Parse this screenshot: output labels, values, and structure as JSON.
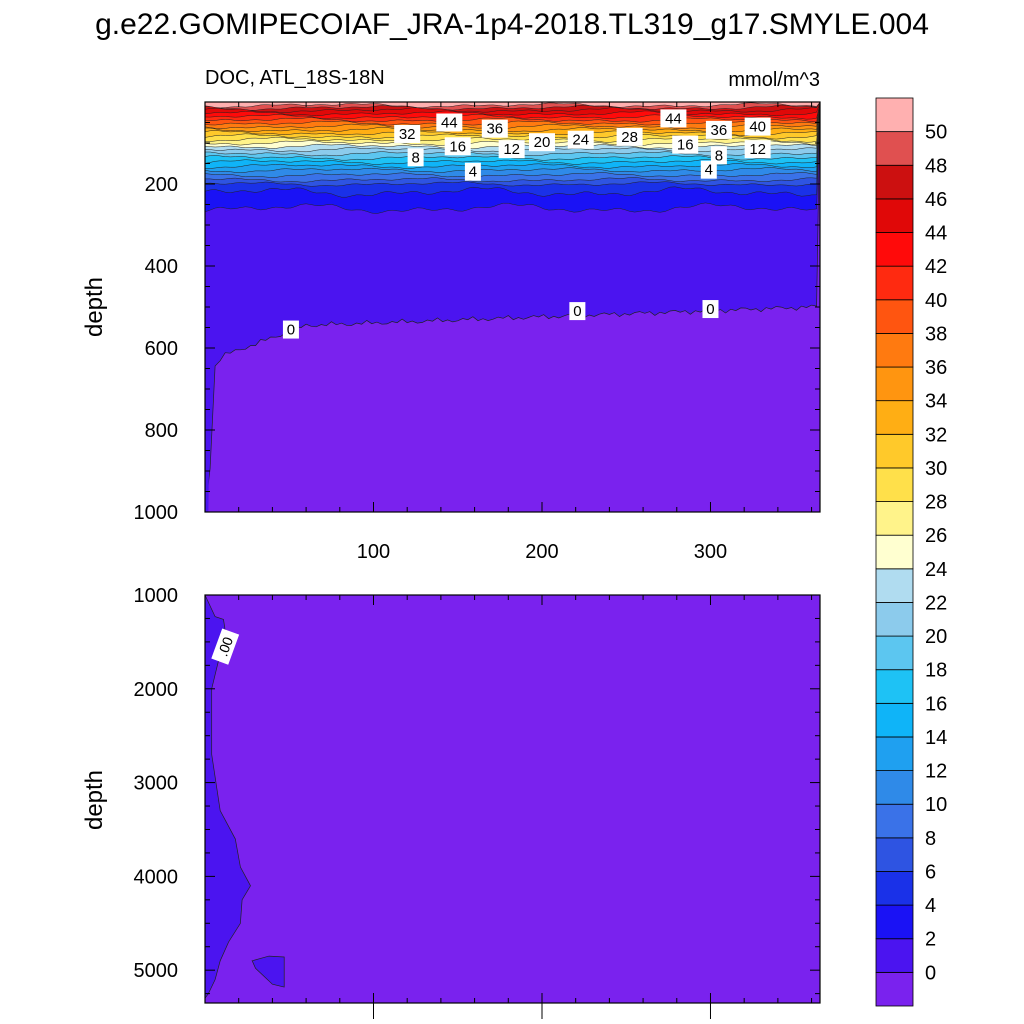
{
  "title": "g.e22.GOMIPECOIAF_JRA-1p4-2018.TL319_g17.SMYLE.004",
  "subtitle_left": "DOC, ATL_18S-18N",
  "subtitle_right": "mmol/m^3",
  "colorbar": {
    "colors": [
      "#7a22ee",
      "#4b14f0",
      "#1a12f5",
      "#1a31e8",
      "#2e54e2",
      "#3a72e8",
      "#2f8ae8",
      "#1fa0f0",
      "#0fb4f8",
      "#1ec2f5",
      "#5cc6f0",
      "#8ccbec",
      "#b0dcf0",
      "#ffffd0",
      "#fff38a",
      "#ffe04a",
      "#ffc92a",
      "#ffae14",
      "#ff9510",
      "#ff7a10",
      "#ff5510",
      "#ff2a10",
      "#ff0a0a",
      "#e00808",
      "#cc1010",
      "#e05050",
      "#ffb0b0"
    ],
    "labels": [
      "0",
      "2",
      "4",
      "6",
      "8",
      "10",
      "12",
      "14",
      "16",
      "18",
      "20",
      "22",
      "24",
      "26",
      "28",
      "30",
      "32",
      "34",
      "36",
      "38",
      "40",
      "42",
      "44",
      "46",
      "48",
      "50"
    ]
  },
  "chart_data": [
    {
      "type": "contour",
      "panel": "upper",
      "title": "DOC, ATL_18S-18N",
      "units": "mmol/m^3",
      "xlabel": "",
      "ylabel": "depth",
      "xlim": [
        0,
        365
      ],
      "ylim": [
        1000,
        0
      ],
      "xticks": [
        "100",
        "200",
        "300"
      ],
      "yticks": [
        "200",
        "400",
        "600",
        "800",
        "1000"
      ],
      "contour_levels": [
        0,
        2,
        4,
        6,
        8,
        10,
        12,
        14,
        16,
        18,
        20,
        22,
        24,
        26,
        28,
        30,
        32,
        34,
        36,
        38,
        40,
        42,
        44,
        46,
        48,
        50
      ],
      "contour_labels": [
        {
          "text": "44",
          "x": 145,
          "y": 50
        },
        {
          "text": "36",
          "x": 172,
          "y": 65
        },
        {
          "text": "32",
          "x": 120,
          "y": 78
        },
        {
          "text": "16",
          "x": 150,
          "y": 108
        },
        {
          "text": "12",
          "x": 182,
          "y": 115
        },
        {
          "text": "20",
          "x": 200,
          "y": 98
        },
        {
          "text": "24",
          "x": 223,
          "y": 92
        },
        {
          "text": "28",
          "x": 252,
          "y": 85
        },
        {
          "text": "44",
          "x": 278,
          "y": 40
        },
        {
          "text": "36",
          "x": 305,
          "y": 68
        },
        {
          "text": "40",
          "x": 328,
          "y": 60
        },
        {
          "text": "16",
          "x": 285,
          "y": 104
        },
        {
          "text": "12",
          "x": 328,
          "y": 115
        },
        {
          "text": "8",
          "x": 305,
          "y": 130
        },
        {
          "text": "8",
          "x": 125,
          "y": 135
        },
        {
          "text": "4",
          "x": 159,
          "y": 170
        },
        {
          "text": "4",
          "x": 299,
          "y": 165
        },
        {
          "text": "0",
          "x": 51,
          "y": 555
        },
        {
          "text": "0",
          "x": 221,
          "y": 510
        },
        {
          "text": "0",
          "x": 300,
          "y": 505
        }
      ]
    },
    {
      "type": "contour",
      "panel": "lower",
      "xlabel": "",
      "ylabel": "depth",
      "xlim": [
        0,
        365
      ],
      "ylim": [
        5350,
        1000
      ],
      "yticks": [
        "1000",
        "2000",
        "3000",
        "4000",
        "5000"
      ],
      "contour_labels": [
        {
          "text": ".00",
          "x": 12,
          "y": 1550
        }
      ]
    }
  ]
}
